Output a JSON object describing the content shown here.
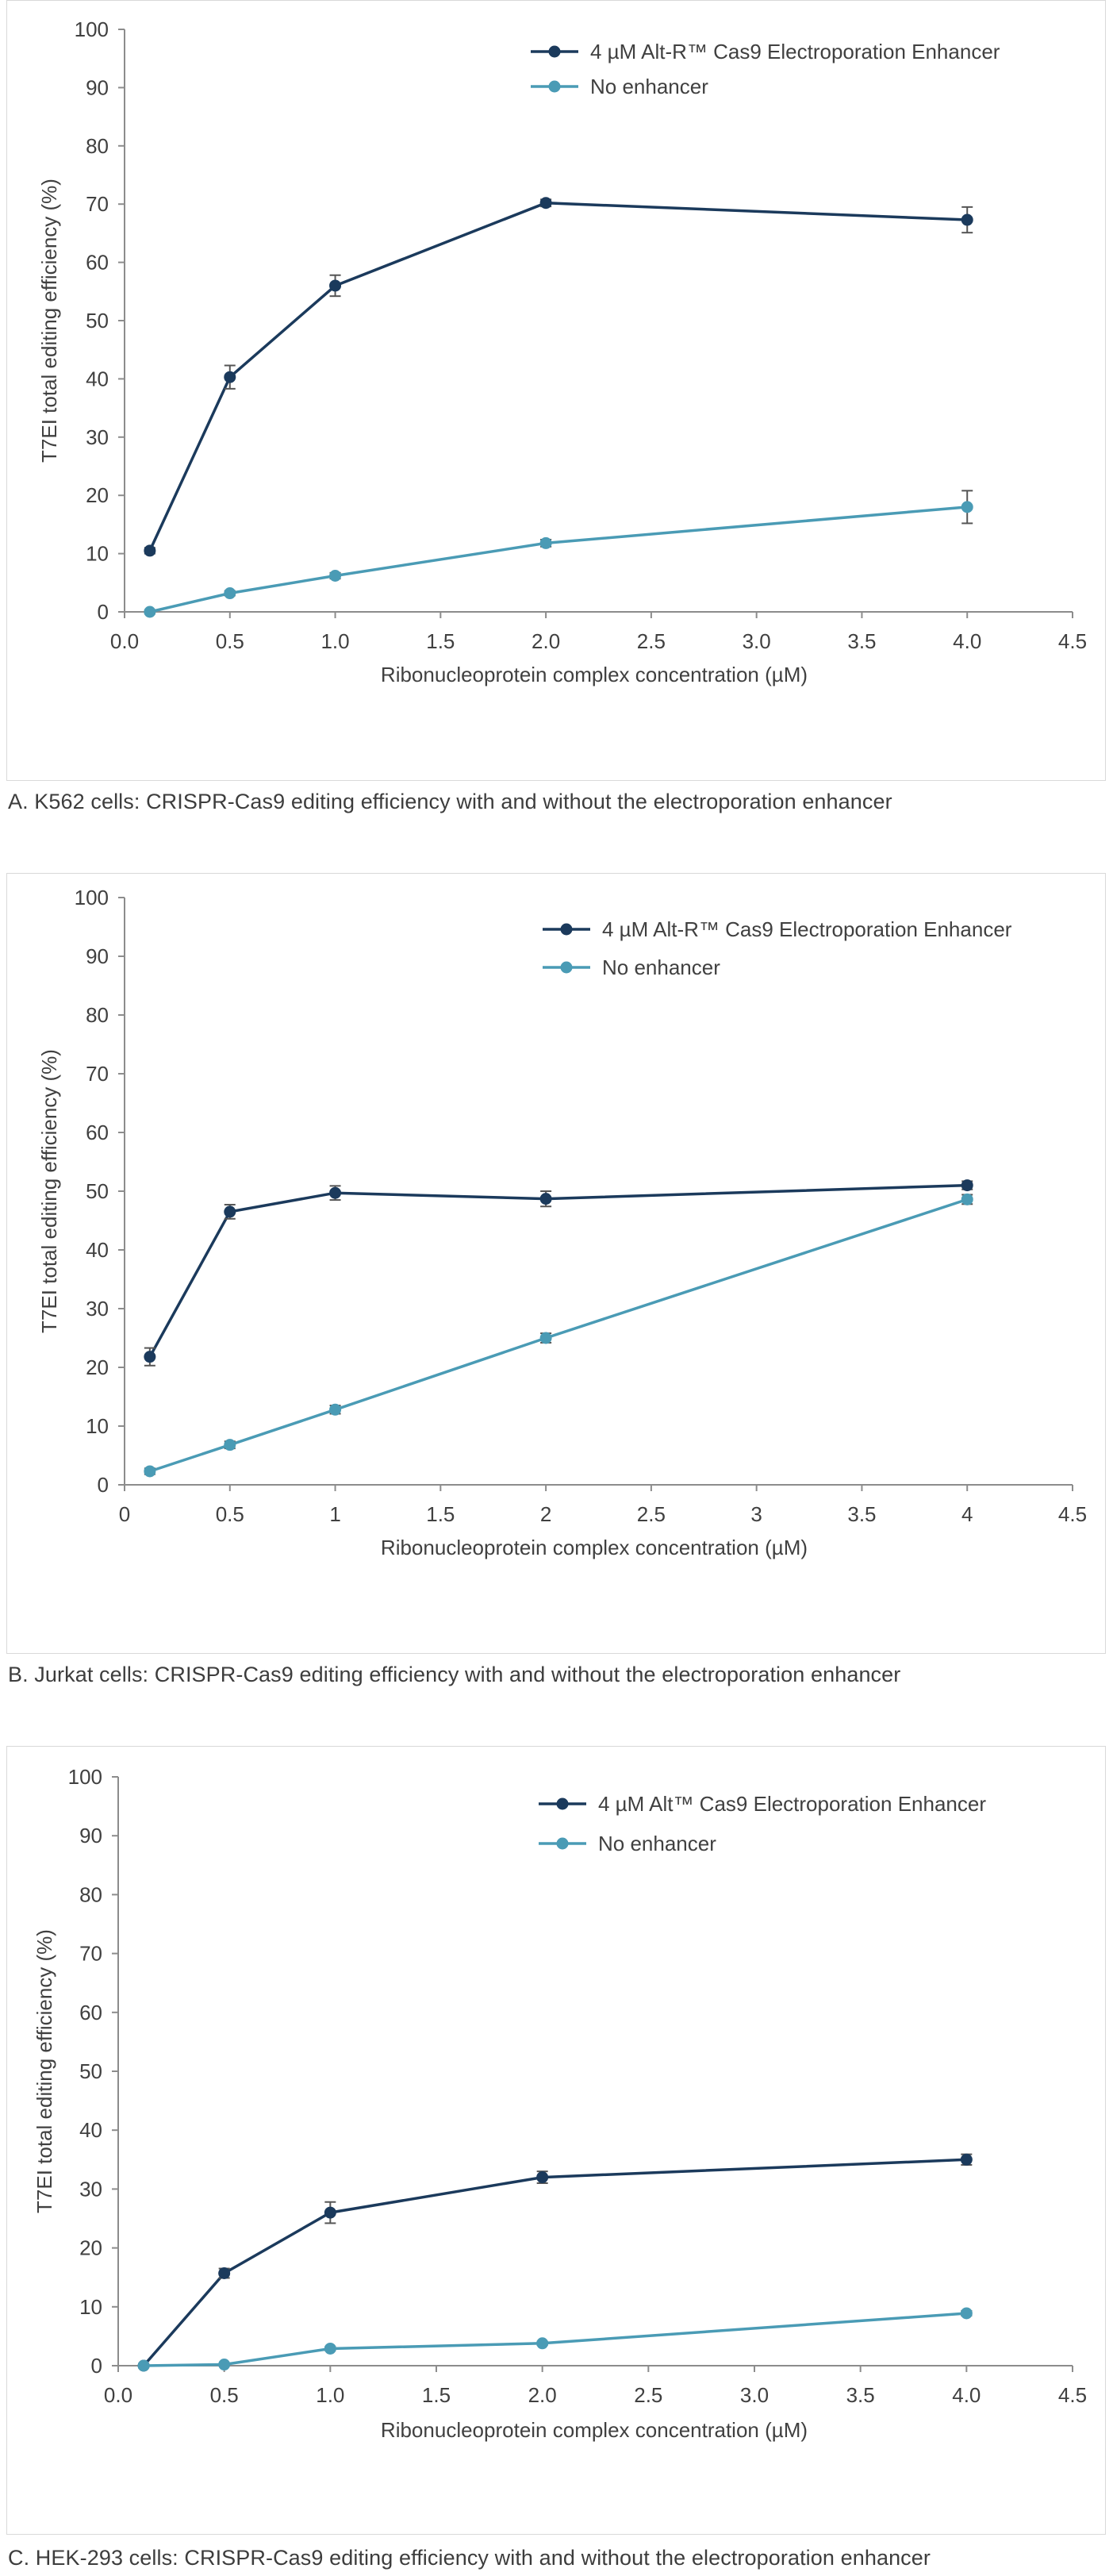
{
  "chart_data": [
    {
      "type": "line",
      "title": "",
      "xlabel": "Ribonucleoprotein complex concentration (µM)",
      "ylabel": "T7EI total editing efficiency (%)",
      "xlim": [
        0,
        4.5
      ],
      "ylim": [
        0,
        100
      ],
      "xticks": [
        "0.0",
        "0.5",
        "1.0",
        "1.5",
        "2.0",
        "2.5",
        "3.0",
        "3.5",
        "4.0",
        "4.5"
      ],
      "yticks": [
        "0",
        "10",
        "20",
        "30",
        "40",
        "50",
        "60",
        "70",
        "80",
        "90",
        "100"
      ],
      "grid": false,
      "legend_position": "top-right",
      "series": [
        {
          "name": "4 µM Alt-R™ Cas9 Electroporation Enhancer",
          "color": "#1b3a5c",
          "x": [
            0.12,
            0.5,
            1.0,
            2.0,
            4.0
          ],
          "y": [
            10.5,
            40.3,
            56.0,
            70.2,
            67.3
          ],
          "error": [
            0.5,
            2.0,
            1.8,
            0.6,
            2.2
          ]
        },
        {
          "name": "No enhancer",
          "color": "#4a9bb5",
          "x": [
            0.12,
            0.5,
            1.0,
            2.0,
            4.0
          ],
          "y": [
            0,
            3.2,
            6.2,
            11.8,
            18.0
          ],
          "error": [
            0.3,
            0.4,
            0.5,
            0.6,
            2.8
          ]
        }
      ],
      "caption": "A. K562 cells: CRISPR-Cas9 editing efficiency with and without the electroporation enhancer"
    },
    {
      "type": "line",
      "title": "",
      "xlabel": "Ribonucleoprotein complex concentration (µM)",
      "ylabel": "T7EI total editing efficiency (%)",
      "xlim": [
        0,
        4.5
      ],
      "ylim": [
        0,
        100
      ],
      "xticks": [
        "0",
        "0.5",
        "1",
        "1.5",
        "2",
        "2.5",
        "3",
        "3.5",
        "4",
        "4.5"
      ],
      "yticks": [
        "0",
        "10",
        "20",
        "30",
        "40",
        "50",
        "60",
        "70",
        "80",
        "90",
        "100"
      ],
      "grid": false,
      "legend_position": "top-right",
      "series": [
        {
          "name": "4 µM Alt-R™ Cas9 Electroporation Enhancer",
          "color": "#1b3a5c",
          "x": [
            0.12,
            0.5,
            1.0,
            2.0,
            4.0
          ],
          "y": [
            21.8,
            46.5,
            49.7,
            48.7,
            51.0
          ],
          "error": [
            1.5,
            1.2,
            1.2,
            1.3,
            0.7
          ]
        },
        {
          "name": "No enhancer",
          "color": "#4a9bb5",
          "x": [
            0.12,
            0.5,
            1.0,
            2.0,
            4.0
          ],
          "y": [
            2.3,
            6.8,
            12.8,
            25.0,
            48.6
          ],
          "error": [
            0.5,
            0.6,
            0.7,
            0.8,
            0.8
          ]
        }
      ],
      "caption": "B. Jurkat cells: CRISPR-Cas9 editing efficiency with and without the electroporation enhancer"
    },
    {
      "type": "line",
      "title": "",
      "xlabel": "Ribonucleoprotein complex concentration (µM)",
      "ylabel": "T7EI total editing efficiency (%)",
      "xlim": [
        0,
        4.5
      ],
      "ylim": [
        0,
        100
      ],
      "xticks": [
        "0.0",
        "0.5",
        "1.0",
        "1.5",
        "2.0",
        "2.5",
        "3.0",
        "3.5",
        "4.0",
        "4.5"
      ],
      "yticks": [
        "0",
        "10",
        "20",
        "30",
        "40",
        "50",
        "60",
        "70",
        "80",
        "90",
        "100"
      ],
      "grid": false,
      "legend_position": "top-right",
      "series": [
        {
          "name": "4 µM Alt™ Cas9 Electroporation Enhancer",
          "color": "#1b3a5c",
          "x": [
            0.12,
            0.5,
            1.0,
            2.0,
            4.0
          ],
          "y": [
            0,
            15.7,
            26.0,
            32.0,
            35.0
          ],
          "error": [
            0.3,
            0.8,
            1.8,
            1.0,
            0.9
          ]
        },
        {
          "name": "No enhancer",
          "color": "#4a9bb5",
          "x": [
            0.12,
            0.5,
            1.0,
            2.0,
            4.0
          ],
          "y": [
            0,
            0.2,
            2.9,
            3.8,
            8.9
          ],
          "error": [
            0.2,
            0.2,
            0.3,
            0.3,
            0.4
          ]
        }
      ],
      "caption": "C. HEK-293 cells: CRISPR-Cas9 editing efficiency with and without the electroporation enhancer"
    }
  ]
}
